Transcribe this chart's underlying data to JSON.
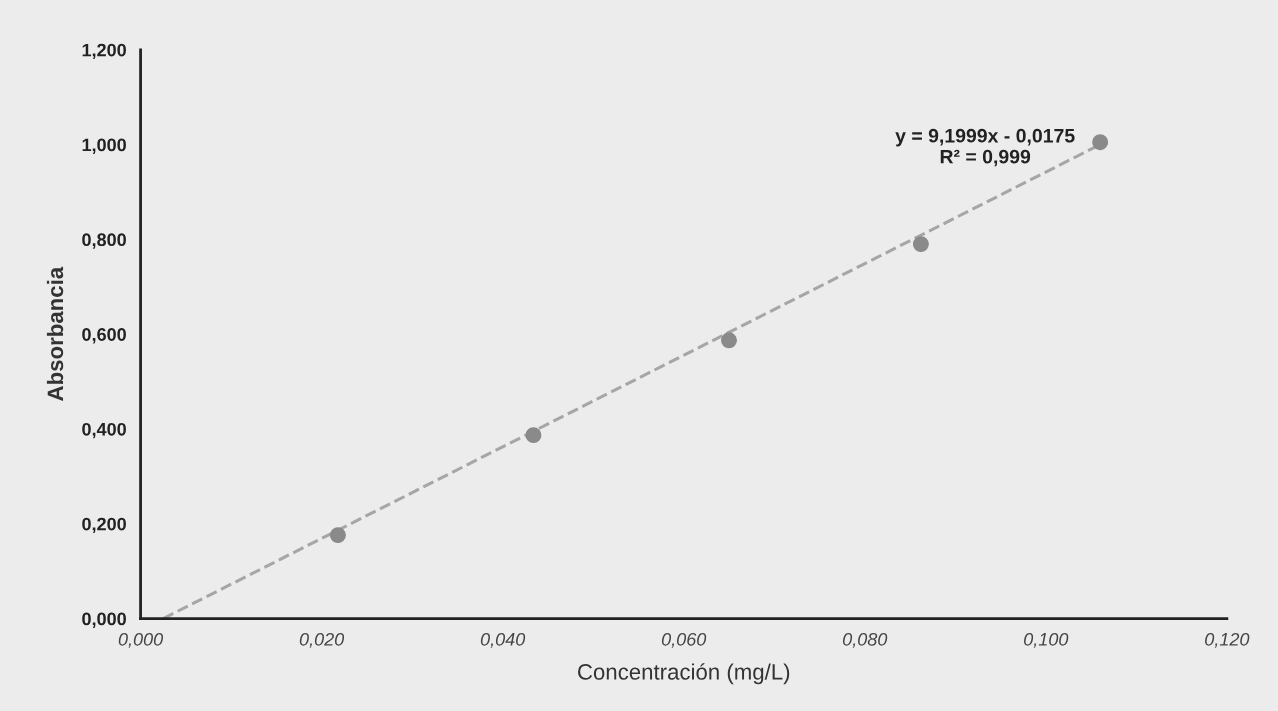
{
  "chart_data": {
    "type": "scatter",
    "xlabel": "Concentración (mg/L)",
    "ylabel": "Absorbancia",
    "series": [
      {
        "color": "#8a8a8a",
        "marker": "circle",
        "x": [
          0.0218,
          0.0434,
          0.065,
          0.0862,
          0.106
        ],
        "values": [
          0.176,
          0.387,
          0.587,
          0.79,
          1.005
        ]
      },
      {
        "type": "line",
        "color": "#a6a6a6",
        "line_style": "dashed",
        "marker": "none",
        "x": [
          0.0025,
          0.106
        ],
        "values": [
          0.0,
          1.0
        ]
      }
    ],
    "annotations": [
      {
        "text": "y = 9,1999x - 0,0175\nR² = 0,999",
        "x": 0.106,
        "y": 1.005
      }
    ],
    "xlim": [
      0,
      0.12
    ],
    "ylim": [
      0,
      1.2
    ],
    "xticks": [
      {
        "value": 0,
        "label": "0,000"
      },
      {
        "value": 0.02,
        "label": "0,020"
      },
      {
        "value": 0.04,
        "label": "0,040"
      },
      {
        "value": 0.06,
        "label": "0,060"
      },
      {
        "value": 0.08,
        "label": "0,080"
      },
      {
        "value": 0.1,
        "label": "0,100"
      },
      {
        "value": 0.12,
        "label": "0,120"
      }
    ],
    "yticks": [
      {
        "value": 0,
        "label": "0,000"
      },
      {
        "value": 0.2,
        "label": "0,200"
      },
      {
        "value": 0.4,
        "label": "0,400"
      },
      {
        "value": 0.6,
        "label": "0,600"
      },
      {
        "value": 0.8,
        "label": "0,800"
      },
      {
        "value": 1.0,
        "label": "1,000"
      },
      {
        "value": 1.2,
        "label": "1,200"
      }
    ],
    "grid": false
  }
}
